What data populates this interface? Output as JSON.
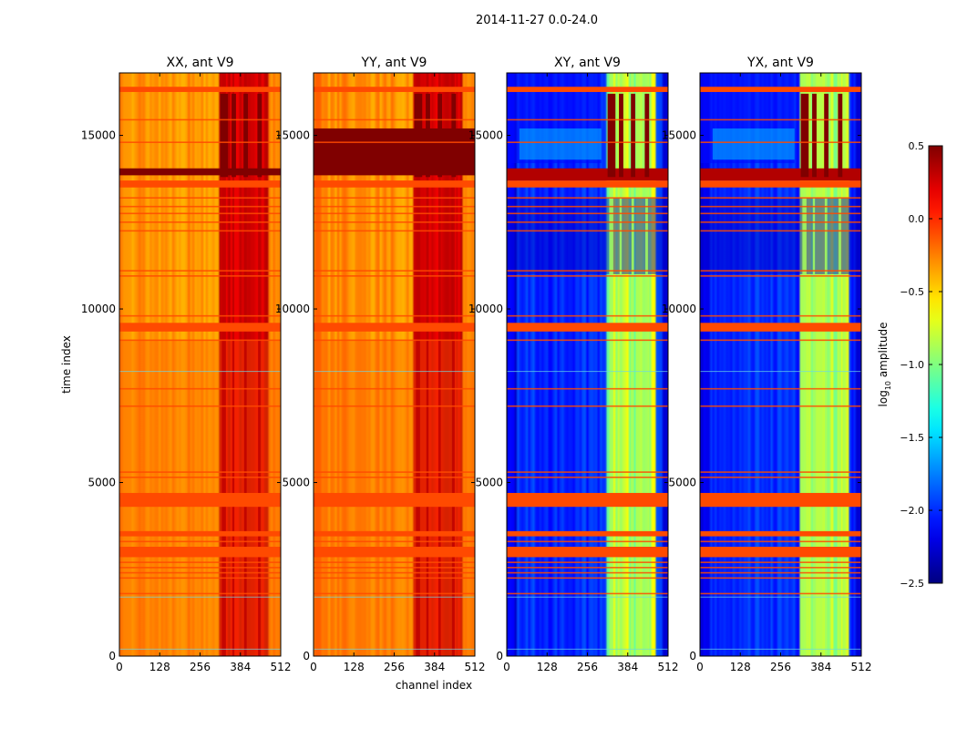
{
  "chart_data": {
    "type": "heatmap",
    "suptitle": "2014-11-27 0.0-24.0",
    "xlabel": "channel index",
    "ylabel": "time index",
    "x_ticks": [
      0,
      128,
      256,
      384,
      512
    ],
    "y_ticks": [
      0,
      5000,
      10000,
      15000
    ],
    "xlim": [
      0,
      512
    ],
    "ylim": [
      0,
      16800
    ],
    "colorbar": {
      "label_main": "log",
      "label_sub": "10",
      "label_rest": " amplitude",
      "range": [
        -2.5,
        0.5
      ],
      "ticks": [
        0.5,
        0.0,
        -0.5,
        -1.0,
        -1.5,
        -2.0,
        -2.5
      ],
      "tick_labels": [
        "0.5",
        "0.0",
        "−0.5",
        "−1.0",
        "−1.5",
        "−2.0",
        "−2.5"
      ],
      "colormap": "jet"
    },
    "panels": [
      {
        "title": "XX, ant V9",
        "kind": "auto_x",
        "background_value": 0.0
      },
      {
        "title": "YY, ant V9",
        "kind": "auto_y",
        "background_value": 0.0
      },
      {
        "title": "XY, ant V9",
        "kind": "cross",
        "background_value": -2.0
      },
      {
        "title": "YX, ant V9",
        "kind": "cross",
        "background_value": -2.0
      }
    ],
    "rfi_channel_bands": [
      [
        325,
        338
      ],
      [
        358,
        365
      ],
      [
        396,
        404
      ],
      [
        440,
        448
      ]
    ],
    "flagged_time_ranges": [
      [
        4300,
        4700
      ],
      [
        3450,
        3600
      ],
      [
        2850,
        3150
      ],
      [
        9350,
        9600
      ],
      [
        13500,
        13700
      ],
      [
        16250,
        16400
      ]
    ],
    "thin_flag_rows": [
      15450,
      14800,
      13200,
      12950,
      12750,
      12500,
      12250,
      11100,
      10950,
      9800,
      9100,
      7700,
      7200,
      5300,
      5150,
      3300,
      2700,
      2550,
      2400,
      2250,
      1800
    ],
    "saturated_time_range": [
      13850,
      15200
    ]
  }
}
